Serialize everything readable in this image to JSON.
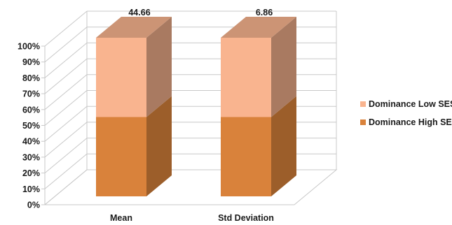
{
  "chart_data": {
    "type": "bar",
    "stacked": true,
    "normalized_percent": true,
    "three_d": true,
    "categories": [
      "Mean",
      "Std Deviation"
    ],
    "series": [
      {
        "name": "Dominance High SES",
        "values": [
          50,
          50
        ],
        "color": "#d9823b"
      },
      {
        "name": "Dominance Low SES",
        "values": [
          50,
          50
        ],
        "color": "#f9b48f"
      }
    ],
    "annotations": [
      "44.66",
      "6.86"
    ],
    "y_ticks": [
      "0%",
      "10%",
      "20%",
      "30%",
      "40%",
      "50%",
      "60%",
      "70%",
      "80%",
      "90%",
      "100%"
    ],
    "ylim": [
      0,
      100
    ],
    "grid": true,
    "legend_position": "right",
    "title": "",
    "xlabel": "",
    "ylabel": ""
  }
}
